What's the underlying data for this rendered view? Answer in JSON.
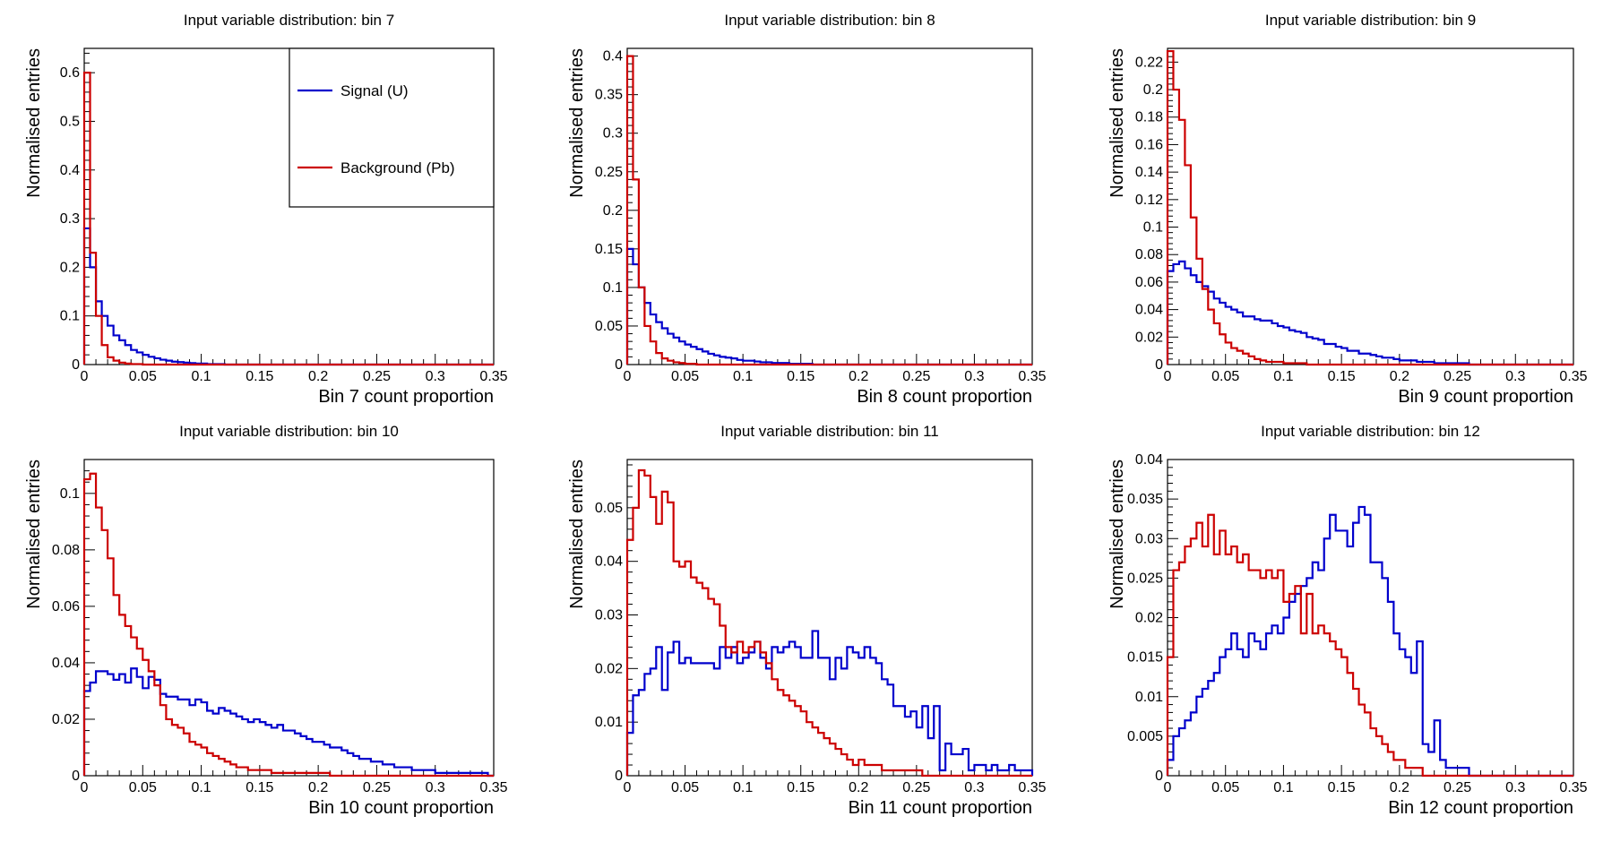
{
  "legend": {
    "signal": "Signal (U)",
    "background": "Background (Pb)"
  },
  "colors": {
    "signal": "#0000cc",
    "background": "#cc0000",
    "frame": "#000000"
  },
  "chart_data": [
    {
      "type": "line",
      "title": "Input variable distribution: bin 7",
      "xlabel": "Bin 7 count proportion",
      "ylabel": "Normalised entries",
      "xlim": [
        0,
        0.35
      ],
      "ylim": [
        0,
        0.65
      ],
      "xticks": [
        0,
        0.05,
        0.1,
        0.15,
        0.2,
        0.25,
        0.3,
        0.35
      ],
      "xtick_labels": [
        "0",
        "0.05",
        "0.1",
        "0.15",
        "0.2",
        "0.25",
        "0.3",
        "0.35"
      ],
      "yticks": [
        0,
        0.1,
        0.2,
        0.3,
        0.4,
        0.5,
        0.6
      ],
      "ytick_labels": [
        "0",
        "0.1",
        "0.2",
        "0.3",
        "0.4",
        "0.5",
        "0.6"
      ],
      "legend_position": "top-right",
      "bin_width": 0.005,
      "series": [
        {
          "name": "Signal (U)",
          "values": [
            0.28,
            0.2,
            0.13,
            0.1,
            0.08,
            0.06,
            0.05,
            0.04,
            0.03,
            0.025,
            0.02,
            0.016,
            0.013,
            0.01,
            0.008,
            0.006,
            0.005,
            0.004,
            0.003,
            0.002,
            0.002,
            0.001,
            0.001,
            0.001
          ]
        },
        {
          "name": "Background (Pb)",
          "values": [
            0.6,
            0.23,
            0.1,
            0.04,
            0.015,
            0.008,
            0.004,
            0.002,
            0.001,
            0.001
          ]
        }
      ]
    },
    {
      "type": "line",
      "title": "Input variable distribution: bin 8",
      "xlabel": "Bin 8 count proportion",
      "ylabel": "Normalised entries",
      "xlim": [
        0,
        0.35
      ],
      "ylim": [
        0,
        0.41
      ],
      "xticks": [
        0,
        0.05,
        0.1,
        0.15,
        0.2,
        0.25,
        0.3,
        0.35
      ],
      "xtick_labels": [
        "0",
        "0.05",
        "0.1",
        "0.15",
        "0.2",
        "0.25",
        "0.3",
        "0.35"
      ],
      "yticks": [
        0,
        0.05,
        0.1,
        0.15,
        0.2,
        0.25,
        0.3,
        0.35,
        0.4
      ],
      "ytick_labels": [
        "0",
        "0.05",
        "0.1",
        "0.15",
        "0.2",
        "0.25",
        "0.3",
        "0.35",
        "0.4"
      ],
      "bin_width": 0.005,
      "series": [
        {
          "name": "Signal (U)",
          "values": [
            0.15,
            0.13,
            0.1,
            0.08,
            0.065,
            0.055,
            0.047,
            0.04,
            0.035,
            0.03,
            0.026,
            0.023,
            0.02,
            0.017,
            0.014,
            0.012,
            0.01,
            0.009,
            0.008,
            0.006,
            0.005,
            0.005,
            0.004,
            0.003,
            0.003,
            0.002,
            0.002,
            0.002,
            0.001,
            0.001,
            0.001,
            0.001
          ]
        },
        {
          "name": "Background (Pb)",
          "values": [
            0.4,
            0.24,
            0.1,
            0.05,
            0.03,
            0.015,
            0.008,
            0.005,
            0.003,
            0.002,
            0.001,
            0.001
          ]
        }
      ]
    },
    {
      "type": "line",
      "title": "Input variable distribution: bin 9",
      "xlabel": "Bin 9 count proportion",
      "ylabel": "Normalised entries",
      "xlim": [
        0,
        0.35
      ],
      "ylim": [
        0,
        0.23
      ],
      "xticks": [
        0,
        0.05,
        0.1,
        0.15,
        0.2,
        0.25,
        0.3,
        0.35
      ],
      "xtick_labels": [
        "0",
        "0.05",
        "0.1",
        "0.15",
        "0.2",
        "0.25",
        "0.3",
        "0.35"
      ],
      "yticks": [
        0,
        0.02,
        0.04,
        0.06,
        0.08,
        0.1,
        0.12,
        0.14,
        0.16,
        0.18,
        0.2,
        0.22
      ],
      "ytick_labels": [
        "0",
        "0.02",
        "0.04",
        "0.06",
        "0.08",
        "0.1",
        "0.12",
        "0.14",
        "0.16",
        "0.18",
        "0.2",
        "0.22"
      ],
      "bin_width": 0.005,
      "series": [
        {
          "name": "Signal (U)",
          "values": [
            0.068,
            0.073,
            0.075,
            0.07,
            0.065,
            0.06,
            0.057,
            0.053,
            0.048,
            0.045,
            0.042,
            0.04,
            0.038,
            0.035,
            0.035,
            0.033,
            0.032,
            0.032,
            0.03,
            0.028,
            0.027,
            0.025,
            0.024,
            0.023,
            0.02,
            0.019,
            0.018,
            0.015,
            0.015,
            0.013,
            0.012,
            0.01,
            0.01,
            0.008,
            0.008,
            0.007,
            0.006,
            0.005,
            0.005,
            0.004,
            0.003,
            0.003,
            0.003,
            0.002,
            0.002,
            0.002,
            0.001,
            0.001,
            0.001,
            0.001,
            0.001,
            0.001
          ]
        },
        {
          "name": "Background (Pb)",
          "values": [
            0.228,
            0.2,
            0.178,
            0.145,
            0.107,
            0.077,
            0.055,
            0.04,
            0.03,
            0.022,
            0.016,
            0.012,
            0.01,
            0.008,
            0.006,
            0.004,
            0.003,
            0.002,
            0.002,
            0.002,
            0.001,
            0.001,
            0.001,
            0.001
          ]
        }
      ]
    },
    {
      "type": "line",
      "title": "Input variable distribution: bin 10",
      "xlabel": "Bin 10 count proportion",
      "ylabel": "Normalised entries",
      "xlim": [
        0,
        0.35
      ],
      "ylim": [
        0,
        0.112
      ],
      "xticks": [
        0,
        0.05,
        0.1,
        0.15,
        0.2,
        0.25,
        0.3,
        0.35
      ],
      "xtick_labels": [
        "0",
        "0.05",
        "0.1",
        "0.15",
        "0.2",
        "0.25",
        "0.3",
        "0.35"
      ],
      "yticks": [
        0,
        0.02,
        0.04,
        0.06,
        0.08,
        0.1
      ],
      "ytick_labels": [
        "0",
        "0.02",
        "0.04",
        "0.06",
        "0.08",
        "0.1"
      ],
      "bin_width": 0.005,
      "series": [
        {
          "name": "Signal (U)",
          "values": [
            0.03,
            0.033,
            0.037,
            0.037,
            0.036,
            0.034,
            0.036,
            0.033,
            0.038,
            0.035,
            0.031,
            0.035,
            0.034,
            0.029,
            0.028,
            0.028,
            0.027,
            0.027,
            0.025,
            0.027,
            0.026,
            0.023,
            0.022,
            0.024,
            0.023,
            0.022,
            0.021,
            0.02,
            0.019,
            0.02,
            0.019,
            0.018,
            0.017,
            0.018,
            0.016,
            0.016,
            0.015,
            0.014,
            0.013,
            0.012,
            0.012,
            0.011,
            0.01,
            0.01,
            0.009,
            0.008,
            0.007,
            0.006,
            0.006,
            0.005,
            0.005,
            0.004,
            0.004,
            0.003,
            0.003,
            0.003,
            0.002,
            0.002,
            0.002,
            0.002,
            0.001,
            0.001,
            0.001,
            0.001,
            0.001,
            0.001,
            0.001,
            0.001,
            0.001
          ]
        },
        {
          "name": "Background (Pb)",
          "values": [
            0.105,
            0.107,
            0.095,
            0.087,
            0.077,
            0.064,
            0.057,
            0.053,
            0.049,
            0.045,
            0.041,
            0.037,
            0.032,
            0.025,
            0.02,
            0.018,
            0.017,
            0.015,
            0.012,
            0.011,
            0.01,
            0.008,
            0.007,
            0.006,
            0.005,
            0.004,
            0.003,
            0.003,
            0.002,
            0.002,
            0.002,
            0.002,
            0.001,
            0.001,
            0.001,
            0.001,
            0.001,
            0.001,
            0.001,
            0.001,
            0.001,
            0.001
          ]
        }
      ]
    },
    {
      "type": "line",
      "title": "Input variable distribution: bin 11",
      "xlabel": "Bin 11 count proportion",
      "ylabel": "Normalised entries",
      "xlim": [
        0,
        0.35
      ],
      "ylim": [
        0,
        0.059
      ],
      "xticks": [
        0,
        0.05,
        0.1,
        0.15,
        0.2,
        0.25,
        0.3,
        0.35
      ],
      "xtick_labels": [
        "0",
        "0.05",
        "0.1",
        "0.15",
        "0.2",
        "0.25",
        "0.3",
        "0.35"
      ],
      "yticks": [
        0,
        0.01,
        0.02,
        0.03,
        0.04,
        0.05
      ],
      "ytick_labels": [
        "0",
        "0.01",
        "0.02",
        "0.03",
        "0.04",
        "0.05"
      ],
      "bin_width": 0.005,
      "series": [
        {
          "name": "Signal (U)",
          "values": [
            0.008,
            0.015,
            0.016,
            0.019,
            0.02,
            0.024,
            0.016,
            0.023,
            0.025,
            0.021,
            0.022,
            0.021,
            0.021,
            0.021,
            0.021,
            0.02,
            0.024,
            0.022,
            0.024,
            0.021,
            0.022,
            0.023,
            0.025,
            0.022,
            0.02,
            0.024,
            0.023,
            0.024,
            0.025,
            0.024,
            0.022,
            0.022,
            0.027,
            0.022,
            0.022,
            0.018,
            0.022,
            0.02,
            0.024,
            0.023,
            0.022,
            0.024,
            0.022,
            0.021,
            0.018,
            0.017,
            0.013,
            0.013,
            0.011,
            0.012,
            0.009,
            0.013,
            0.007,
            0.013,
            0.001,
            0.006,
            0.004,
            0.004,
            0.005,
            0.001,
            0.002,
            0.002,
            0.001,
            0.002,
            0.001,
            0.001,
            0.002,
            0.001,
            0.001,
            0.001
          ]
        },
        {
          "name": "Background (Pb)",
          "values": [
            0.044,
            0.05,
            0.057,
            0.056,
            0.052,
            0.047,
            0.053,
            0.051,
            0.04,
            0.039,
            0.04,
            0.037,
            0.036,
            0.035,
            0.033,
            0.032,
            0.028,
            0.024,
            0.023,
            0.025,
            0.023,
            0.024,
            0.025,
            0.023,
            0.021,
            0.018,
            0.016,
            0.015,
            0.014,
            0.013,
            0.012,
            0.01,
            0.009,
            0.008,
            0.007,
            0.006,
            0.005,
            0.004,
            0.003,
            0.002,
            0.003,
            0.002,
            0.002,
            0.002,
            0.001,
            0.001,
            0.001,
            0.001,
            0.001,
            0.001,
            0.001
          ]
        }
      ]
    },
    {
      "type": "line",
      "title": "Input variable distribution: bin 12",
      "xlabel": "Bin 12 count proportion",
      "ylabel": "Normalised entries",
      "xlim": [
        0,
        0.35
      ],
      "ylim": [
        0,
        0.04
      ],
      "xticks": [
        0,
        0.05,
        0.1,
        0.15,
        0.2,
        0.25,
        0.3,
        0.35
      ],
      "xtick_labels": [
        "0",
        "0.05",
        "0.1",
        "0.15",
        "0.2",
        "0.25",
        "0.3",
        "0.35"
      ],
      "yticks": [
        0,
        0.005,
        0.01,
        0.015,
        0.02,
        0.025,
        0.03,
        0.035,
        0.04
      ],
      "ytick_labels": [
        "0",
        "0.005",
        "0.01",
        "0.015",
        "0.02",
        "0.025",
        "0.03",
        "0.035",
        "0.04"
      ],
      "bin_width": 0.005,
      "series": [
        {
          "name": "Signal (U)",
          "values": [
            0.002,
            0.005,
            0.006,
            0.007,
            0.008,
            0.01,
            0.011,
            0.012,
            0.013,
            0.015,
            0.016,
            0.018,
            0.016,
            0.015,
            0.018,
            0.017,
            0.016,
            0.018,
            0.019,
            0.018,
            0.02,
            0.022,
            0.023,
            0.024,
            0.025,
            0.027,
            0.026,
            0.03,
            0.033,
            0.031,
            0.031,
            0.029,
            0.032,
            0.034,
            0.033,
            0.027,
            0.027,
            0.025,
            0.022,
            0.018,
            0.016,
            0.015,
            0.013,
            0.017,
            0.004,
            0.003,
            0.007,
            0.002,
            0.001,
            0.001,
            0.001,
            0.001
          ]
        },
        {
          "name": "Background (Pb)",
          "values": [
            0.015,
            0.026,
            0.027,
            0.029,
            0.03,
            0.032,
            0.029,
            0.033,
            0.028,
            0.031,
            0.028,
            0.029,
            0.027,
            0.028,
            0.026,
            0.026,
            0.025,
            0.026,
            0.025,
            0.026,
            0.022,
            0.023,
            0.024,
            0.018,
            0.023,
            0.018,
            0.019,
            0.018,
            0.017,
            0.016,
            0.015,
            0.013,
            0.011,
            0.009,
            0.008,
            0.006,
            0.005,
            0.004,
            0.003,
            0.002,
            0.002,
            0.001,
            0.001,
            0.001
          ]
        }
      ]
    }
  ]
}
